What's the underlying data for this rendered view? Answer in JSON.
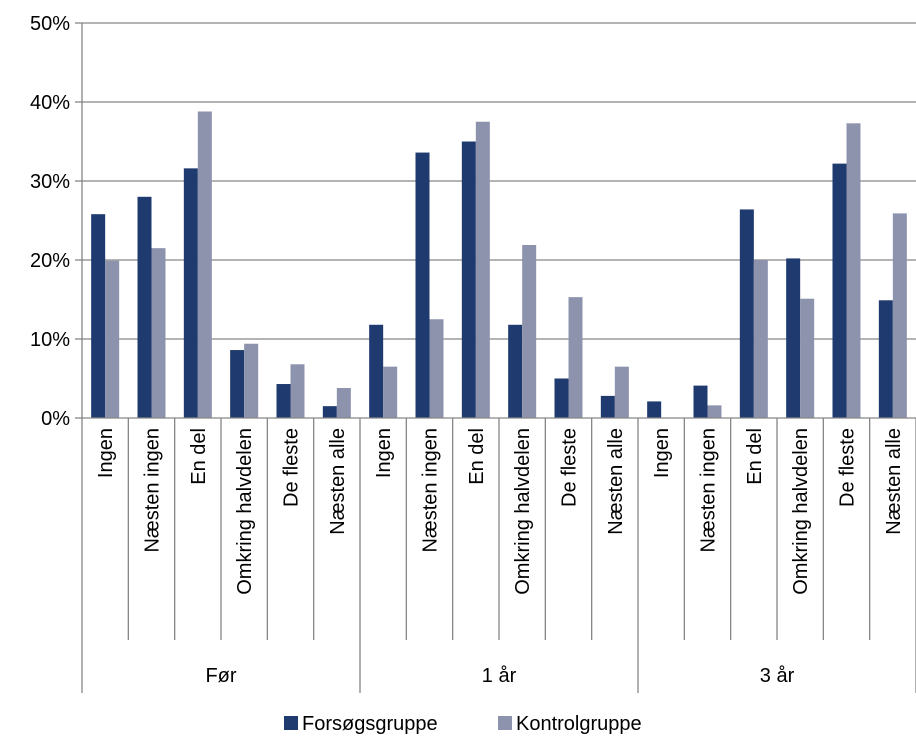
{
  "chart_data": {
    "type": "bar",
    "groups": [
      {
        "label": "Før",
        "categories": [
          "Ingen",
          "Næsten ingen",
          "En del",
          "Omkring halvdelen",
          "De fleste",
          "Næsten alle"
        ]
      },
      {
        "label": "1 år",
        "categories": [
          "Ingen",
          "Næsten ingen",
          "En del",
          "Omkring halvdelen",
          "De fleste",
          "Næsten alle"
        ]
      },
      {
        "label": "3 år",
        "categories": [
          "Ingen",
          "Næsten ingen",
          "En del",
          "Omkring halvdelen",
          "De fleste",
          "Næsten alle"
        ]
      }
    ],
    "series": [
      {
        "name": "Forsøgsgruppe",
        "color": "#1f3a6e",
        "values": [
          25.8,
          28.0,
          31.6,
          8.6,
          4.3,
          1.5,
          11.8,
          33.6,
          35.0,
          11.8,
          5.0,
          2.8,
          2.1,
          4.1,
          26.4,
          20.2,
          32.2,
          14.9
        ]
      },
      {
        "name": "Kontrolgruppe",
        "color": "#8d93ad",
        "values": [
          19.9,
          21.5,
          38.8,
          9.4,
          6.8,
          3.8,
          6.5,
          12.5,
          37.5,
          21.9,
          15.3,
          6.5,
          0.0,
          1.6,
          20.0,
          15.1,
          37.3,
          25.9
        ]
      }
    ],
    "yticks": [
      "0%",
      "10%",
      "20%",
      "30%",
      "40%",
      "50%"
    ],
    "ylim": [
      0,
      50
    ],
    "grid": true,
    "legend_position": "bottom"
  }
}
